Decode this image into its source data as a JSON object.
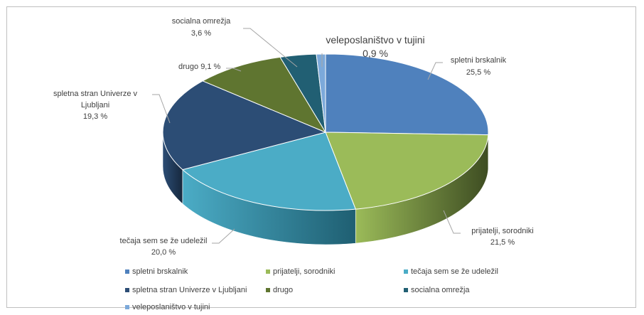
{
  "chart_data": {
    "type": "pie",
    "style": "3d",
    "legend_position": "bottom",
    "slices": [
      {
        "name": "spletni brskalnik",
        "value": 25.5,
        "label": "spletni brskalnik",
        "value_label": "25,5 %",
        "color": "#4F81BD",
        "dark": "#2E4E75"
      },
      {
        "name": "prijatelji, sorodniki",
        "value": 21.5,
        "label": "prijatelji, sorodniki",
        "value_label": "21,5 %",
        "color": "#9BBB59",
        "dark": "#3E4D22"
      },
      {
        "name": "tečaja sem se že udeležil",
        "value": 20.0,
        "label": "tečaja sem se že udeležil",
        "value_label": "20,0 %",
        "color": "#4BACC6",
        "dark": "#1F5F72"
      },
      {
        "name": "spletna stran Univerze v Ljubljani",
        "value": 19.3,
        "label_lines": [
          "spletna stran Univerze v",
          "Ljubljani"
        ],
        "value_label": "19,3 %",
        "color": "#2C4D75",
        "dark": "#16283D"
      },
      {
        "name": "drugo",
        "value": 9.1,
        "label": "drugo 9,1 %",
        "color": "#5F7530",
        "dark": "#323D18"
      },
      {
        "name": "socialna omrežja",
        "value": 3.6,
        "label": "socialna omrežja",
        "value_label": "3,6 %",
        "color": "#215F73",
        "dark": "#10303B"
      },
      {
        "name": "veleposlaništvo v tujini",
        "value": 0.9,
        "label": "veleposlaništvo v tujini",
        "value_label": "0,9 %",
        "color": "#7CA9DA",
        "dark": "#3E5C80"
      }
    ],
    "legend": [
      "spletni brskalnik",
      "prijatelji, sorodniki",
      "tečaja sem se že udeležil",
      "spletna stran Univerze v Ljubljani",
      "drugo",
      "socialna omrežja",
      "veleposlaništvo v tujini"
    ]
  }
}
